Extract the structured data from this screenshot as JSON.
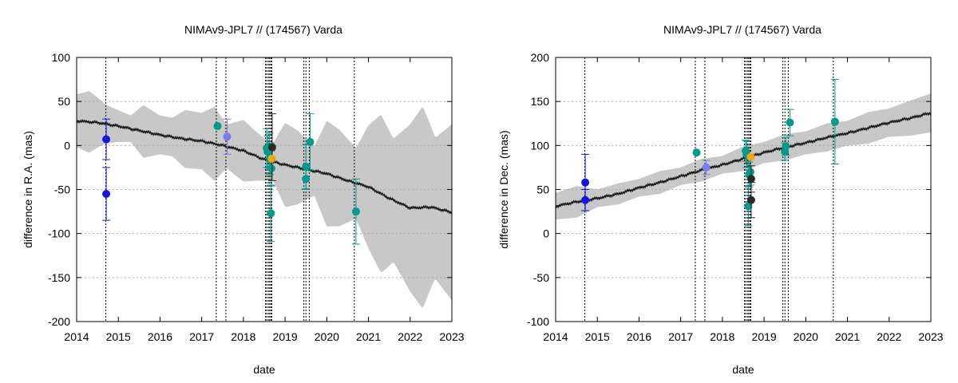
{
  "chart_data": [
    {
      "type": "scatter",
      "title": "NIMAv9-JPL7 // (174567) Varda",
      "xlabel": "date",
      "ylabel": "difference in R.A. (mas)",
      "xlim": [
        2014,
        2023
      ],
      "ylim": [
        -200,
        100
      ],
      "x_ticks": [
        "2014",
        "2015",
        "2016",
        "2017",
        "2018",
        "2019",
        "2020",
        "2021",
        "2022",
        "2023"
      ],
      "y_ticks": [
        "100",
        "50",
        "0",
        "-50",
        "-100",
        "-150",
        "-200"
      ],
      "grid": true,
      "colors": {
        "band": "#c8c8c8",
        "line": "#1a1a1a",
        "blue": "#1414e6",
        "lightblue": "#7b7bf2",
        "teal": "#009b8c",
        "black": "#2b2b2b",
        "orange": "#f5a500"
      },
      "vlines": [
        2014.7,
        2017.35,
        2017.58,
        2018.53,
        2018.56,
        2018.6,
        2018.63,
        2018.66,
        2018.68,
        2019.45,
        2019.5,
        2019.58,
        2020.66
      ],
      "trend": [
        [
          2014.0,
          28
        ],
        [
          2014.5,
          26
        ],
        [
          2015.0,
          22
        ],
        [
          2015.5,
          17
        ],
        [
          2016.0,
          12
        ],
        [
          2016.5,
          8
        ],
        [
          2017.0,
          5
        ],
        [
          2017.5,
          0
        ],
        [
          2018.0,
          -6
        ],
        [
          2018.5,
          -16
        ],
        [
          2019.0,
          -22
        ],
        [
          2019.5,
          -27
        ],
        [
          2020.0,
          -32
        ],
        [
          2020.5,
          -40
        ],
        [
          2021.0,
          -47
        ],
        [
          2021.5,
          -60
        ],
        [
          2022.0,
          -71
        ],
        [
          2022.5,
          -70
        ],
        [
          2023.0,
          -76
        ]
      ],
      "band_halfwidth": [
        [
          2014.0,
          30
        ],
        [
          2014.3,
          35
        ],
        [
          2014.7,
          22
        ],
        [
          2015.0,
          18
        ],
        [
          2015.3,
          15
        ],
        [
          2015.6,
          30
        ],
        [
          2016.0,
          22
        ],
        [
          2016.3,
          22
        ],
        [
          2016.6,
          33
        ],
        [
          2017.0,
          32
        ],
        [
          2017.3,
          42
        ],
        [
          2017.6,
          25
        ],
        [
          2018.0,
          35
        ],
        [
          2018.3,
          28
        ],
        [
          2018.7,
          20
        ],
        [
          2019.0,
          48
        ],
        [
          2019.3,
          42
        ],
        [
          2019.7,
          28
        ],
        [
          2020.0,
          60
        ],
        [
          2020.3,
          55
        ],
        [
          2020.7,
          40
        ],
        [
          2021.0,
          70
        ],
        [
          2021.3,
          90
        ],
        [
          2021.6,
          70
        ],
        [
          2022.0,
          95
        ],
        [
          2022.3,
          115
        ],
        [
          2022.6,
          80
        ],
        [
          2023.0,
          100
        ]
      ],
      "series": [
        {
          "color": "blue",
          "points": [
            {
              "x": 2014.71,
              "y": 7,
              "err": 23
            },
            {
              "x": 2014.71,
              "y": -55,
              "err": 30
            }
          ]
        },
        {
          "color": "lightblue",
          "points": [
            {
              "x": 2017.61,
              "y": 10,
              "err": 20
            }
          ]
        },
        {
          "color": "teal",
          "points": [
            {
              "x": 2017.38,
              "y": 22,
              "err": 0
            },
            {
              "x": 2018.56,
              "y": -3,
              "err": 22
            },
            {
              "x": 2018.58,
              "y": -7,
              "err": 18
            },
            {
              "x": 2018.62,
              "y": -6,
              "err": 20
            },
            {
              "x": 2018.64,
              "y": -15,
              "err": 18
            },
            {
              "x": 2018.67,
              "y": -26,
              "err": 20
            },
            {
              "x": 2018.66,
              "y": -77,
              "err": 32
            },
            {
              "x": 2019.5,
              "y": -24,
              "err": 25
            },
            {
              "x": 2019.5,
              "y": -38,
              "err": 12
            },
            {
              "x": 2019.6,
              "y": 4,
              "err": 32
            },
            {
              "x": 2020.7,
              "y": -75,
              "err": 37
            }
          ]
        },
        {
          "color": "black",
          "points": [
            {
              "x": 2018.69,
              "y": -2,
              "err": 38
            }
          ]
        },
        {
          "color": "orange",
          "points": [
            {
              "x": 2018.68,
              "y": -15,
              "err": 0
            }
          ]
        }
      ]
    },
    {
      "type": "scatter",
      "title": "NIMAv9-JPL7 // (174567) Varda",
      "xlabel": "date",
      "ylabel": "difference in Dec. (mas)",
      "xlim": [
        2014,
        2023
      ],
      "ylim": [
        -100,
        200
      ],
      "x_ticks": [
        "2014",
        "2015",
        "2016",
        "2017",
        "2018",
        "2019",
        "2020",
        "2021",
        "2022",
        "2023"
      ],
      "y_ticks": [
        "200",
        "150",
        "100",
        "50",
        "0",
        "-50",
        "-100"
      ],
      "grid": true,
      "colors": {
        "band": "#c8c8c8",
        "line": "#1a1a1a",
        "blue": "#1414e6",
        "lightblue": "#7b7bf2",
        "teal": "#009b8c",
        "black": "#2b2b2b",
        "orange": "#f5a500"
      },
      "vlines": [
        2014.7,
        2017.35,
        2017.58,
        2018.53,
        2018.56,
        2018.6,
        2018.63,
        2018.66,
        2018.68,
        2019.45,
        2019.5,
        2019.58,
        2020.66
      ],
      "trend": [
        [
          2014.0,
          31
        ],
        [
          2014.5,
          36
        ],
        [
          2015.0,
          40
        ],
        [
          2015.5,
          45
        ],
        [
          2016.0,
          52
        ],
        [
          2016.5,
          58
        ],
        [
          2017.0,
          65
        ],
        [
          2017.5,
          72
        ],
        [
          2018.0,
          78
        ],
        [
          2018.5,
          85
        ],
        [
          2019.0,
          92
        ],
        [
          2019.5,
          98
        ],
        [
          2020.0,
          103
        ],
        [
          2020.5,
          109
        ],
        [
          2021.0,
          114
        ],
        [
          2021.5,
          120
        ],
        [
          2022.0,
          126
        ],
        [
          2022.5,
          131
        ],
        [
          2023.0,
          137
        ]
      ],
      "band_halfwidth": [
        [
          2014.0,
          15
        ],
        [
          2014.5,
          18
        ],
        [
          2015.0,
          10
        ],
        [
          2015.5,
          12
        ],
        [
          2016.0,
          10
        ],
        [
          2016.5,
          13
        ],
        [
          2017.0,
          10
        ],
        [
          2017.5,
          13
        ],
        [
          2018.0,
          10
        ],
        [
          2018.5,
          14
        ],
        [
          2019.0,
          12
        ],
        [
          2019.5,
          15
        ],
        [
          2020.0,
          13
        ],
        [
          2020.5,
          16
        ],
        [
          2021.0,
          14
        ],
        [
          2021.5,
          18
        ],
        [
          2022.0,
          16
        ],
        [
          2022.5,
          20
        ],
        [
          2023.0,
          22
        ]
      ],
      "series": [
        {
          "color": "blue",
          "points": [
            {
              "x": 2014.71,
              "y": 58,
              "err": 32
            },
            {
              "x": 2014.71,
              "y": 38,
              "err": 12
            }
          ]
        },
        {
          "color": "lightblue",
          "points": [
            {
              "x": 2017.61,
              "y": 75,
              "err": 8
            }
          ]
        },
        {
          "color": "teal",
          "points": [
            {
              "x": 2017.38,
              "y": 92,
              "err": 0
            },
            {
              "x": 2018.56,
              "y": 94,
              "err": 12
            },
            {
              "x": 2018.58,
              "y": 90,
              "err": 15
            },
            {
              "x": 2018.62,
              "y": 31,
              "err": 22
            },
            {
              "x": 2018.64,
              "y": 67,
              "err": 14
            },
            {
              "x": 2018.67,
              "y": 70,
              "err": 15
            },
            {
              "x": 2019.5,
              "y": 93,
              "err": 10
            },
            {
              "x": 2019.52,
              "y": 99,
              "err": 10
            },
            {
              "x": 2019.62,
              "y": 126,
              "err": 15
            },
            {
              "x": 2020.7,
              "y": 127,
              "err": 48
            }
          ]
        },
        {
          "color": "black",
          "points": [
            {
              "x": 2018.69,
              "y": 62,
              "err": 15
            },
            {
              "x": 2018.69,
              "y": 38,
              "err": 20
            }
          ]
        },
        {
          "color": "orange",
          "points": [
            {
              "x": 2018.68,
              "y": 87,
              "err": 0
            }
          ]
        }
      ]
    }
  ]
}
